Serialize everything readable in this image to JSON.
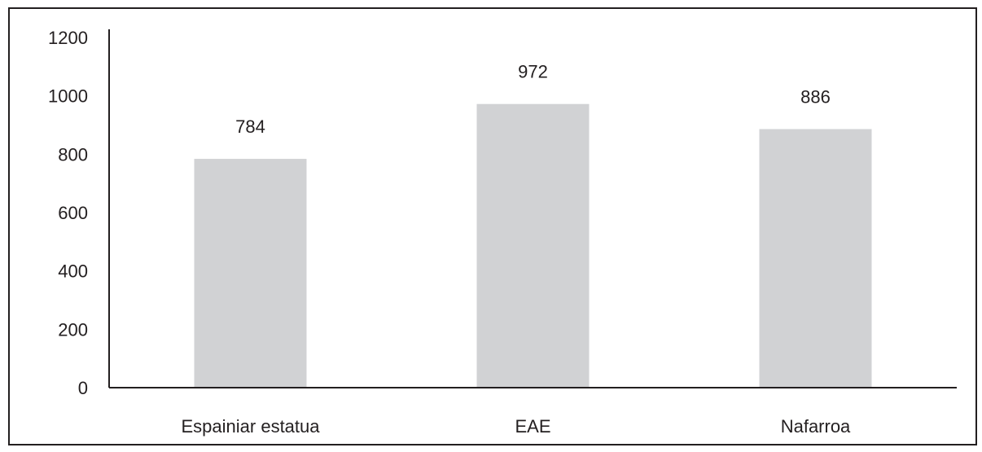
{
  "chart_data": {
    "type": "bar",
    "title": "",
    "xlabel": "",
    "ylabel": "",
    "categories": [
      "Espainiar estatua",
      "EAE",
      "Nafarroa"
    ],
    "values": [
      784,
      972,
      886
    ],
    "data_labels": [
      "784",
      "972",
      "886"
    ],
    "ylim": [
      0,
      1200
    ],
    "yticks": [
      0,
      200,
      400,
      600,
      800,
      1000,
      1200
    ],
    "ytick_labels": [
      "0",
      "200",
      "400",
      "600",
      "800",
      "1000",
      "1200"
    ],
    "grid": false,
    "legend": "none",
    "colors": {
      "bar": "#d1d2d4",
      "axis": "#231f20",
      "text": "#231f20",
      "frame": "#231f20"
    }
  }
}
